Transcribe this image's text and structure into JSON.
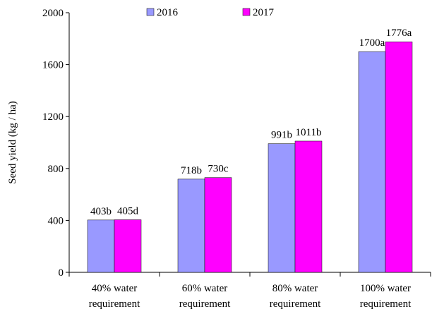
{
  "chart_data": {
    "type": "bar",
    "y_label": "Seed yield (kg / ha)",
    "categories": [
      "40% water requirement",
      "60% water requirement",
      "80% water requirement",
      "100% water requirement"
    ],
    "series": [
      {
        "name": "2016",
        "color": "#9999ff",
        "values": [
          403,
          718,
          991,
          1700
        ],
        "value_labels": [
          "403b",
          "718b",
          "991b",
          "1700a"
        ]
      },
      {
        "name": "2017",
        "color": "#ff00ff",
        "values": [
          405,
          730,
          1011,
          1776
        ],
        "value_labels": [
          "405d",
          "730c",
          "1011b",
          "1776a"
        ]
      }
    ],
    "ylim": [
      0,
      2000
    ],
    "yticks": [
      0,
      400,
      800,
      1200,
      1600,
      2000
    ],
    "grid": false
  }
}
